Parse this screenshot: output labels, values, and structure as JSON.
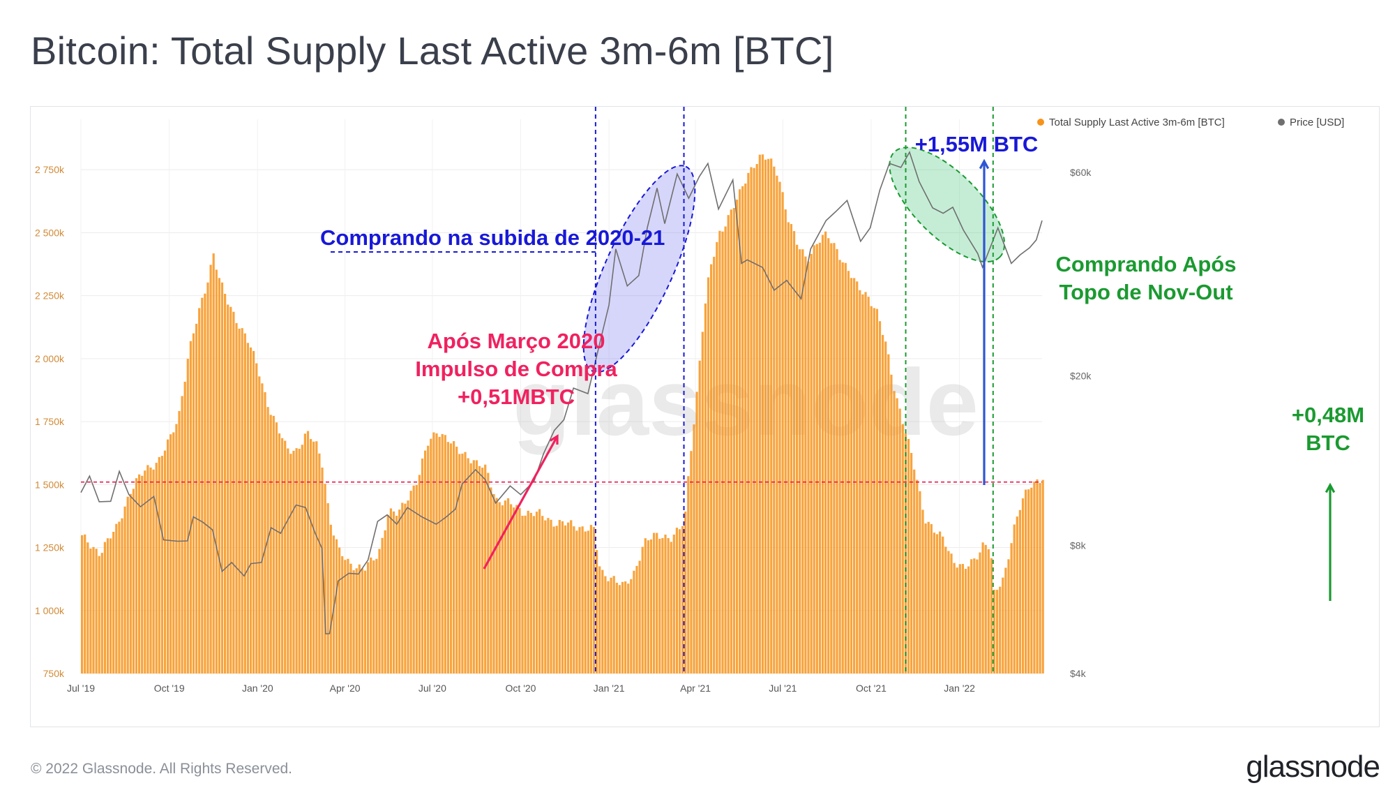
{
  "title": "Bitcoin: Total Supply Last Active 3m-6m [BTC]",
  "footer": {
    "copyright": "© 2022 Glassnode. All Rights Reserved.",
    "logo": "glassnode"
  },
  "watermark": "glassnode",
  "chart_data": {
    "type": "bar",
    "title": "Bitcoin: Total Supply Last Active 3m-6m [BTC]",
    "legend_position": "top-right",
    "grid": true,
    "x_range": [
      "2019-07-01",
      "2022-03-28"
    ],
    "x_ticks": [
      {
        "date": "2019-07-01",
        "label": "Jul '19"
      },
      {
        "date": "2019-10-01",
        "label": "Oct '19"
      },
      {
        "date": "2020-01-01",
        "label": "Jan '20"
      },
      {
        "date": "2020-04-01",
        "label": "Apr '20"
      },
      {
        "date": "2020-07-01",
        "label": "Jul '20"
      },
      {
        "date": "2020-10-01",
        "label": "Oct '20"
      },
      {
        "date": "2021-01-01",
        "label": "Jan '21"
      },
      {
        "date": "2021-04-01",
        "label": "Apr '21"
      },
      {
        "date": "2021-07-01",
        "label": "Jul '21"
      },
      {
        "date": "2021-10-01",
        "label": "Oct '21"
      },
      {
        "date": "2022-01-01",
        "label": "Jan '22"
      }
    ],
    "y_left": {
      "unit": "BTC",
      "range": [
        750000,
        2950000
      ],
      "ticks": [
        {
          "value": 750000,
          "label": "750k"
        },
        {
          "value": 1000000,
          "label": "1 000k"
        },
        {
          "value": 1250000,
          "label": "1 250k"
        },
        {
          "value": 1500000,
          "label": "1 500k"
        },
        {
          "value": 1750000,
          "label": "1 750k"
        },
        {
          "value": 2000000,
          "label": "2 000k"
        },
        {
          "value": 2250000,
          "label": "2 250k"
        },
        {
          "value": 2500000,
          "label": "2 500k"
        },
        {
          "value": 2750000,
          "label": "2 750k"
        }
      ]
    },
    "y_right": {
      "unit": "USD",
      "scale": "log",
      "range": [
        4000,
        80000
      ],
      "ticks": [
        {
          "value": 4000,
          "label": "$4k"
        },
        {
          "value": 8000,
          "label": "$8k"
        },
        {
          "value": 20000,
          "label": "$20k"
        },
        {
          "value": 60000,
          "label": "$60k"
        }
      ]
    },
    "series": [
      {
        "name": "Total Supply Last Active 3m-6m [BTC]",
        "color": "#f7931a",
        "axis": "left",
        "kind": "bar",
        "points": [
          [
            "2019-07-01",
            1290000
          ],
          [
            "2019-07-20",
            1230000
          ],
          [
            "2019-08-05",
            1320000
          ],
          [
            "2019-08-20",
            1470000
          ],
          [
            "2019-09-05",
            1560000
          ],
          [
            "2019-09-20",
            1600000
          ],
          [
            "2019-10-01",
            1680000
          ],
          [
            "2019-10-10",
            1780000
          ],
          [
            "2019-10-20",
            2020000
          ],
          [
            "2019-10-30",
            2170000
          ],
          [
            "2019-11-08",
            2300000
          ],
          [
            "2019-11-15",
            2420000
          ],
          [
            "2019-11-22",
            2300000
          ],
          [
            "2019-12-01",
            2210000
          ],
          [
            "2019-12-10",
            2150000
          ],
          [
            "2019-12-20",
            2080000
          ],
          [
            "2020-01-01",
            1950000
          ],
          [
            "2020-01-10",
            1830000
          ],
          [
            "2020-01-20",
            1730000
          ],
          [
            "2020-01-30",
            1640000
          ],
          [
            "2020-02-10",
            1640000
          ],
          [
            "2020-02-20",
            1700000
          ],
          [
            "2020-03-01",
            1660000
          ],
          [
            "2020-03-08",
            1580000
          ],
          [
            "2020-03-15",
            1360000
          ],
          [
            "2020-03-25",
            1230000
          ],
          [
            "2020-04-05",
            1190000
          ],
          [
            "2020-04-20",
            1160000
          ],
          [
            "2020-05-05",
            1230000
          ],
          [
            "2020-05-15",
            1390000
          ],
          [
            "2020-05-25",
            1380000
          ],
          [
            "2020-06-05",
            1460000
          ],
          [
            "2020-06-15",
            1520000
          ],
          [
            "2020-06-25",
            1660000
          ],
          [
            "2020-07-05",
            1720000
          ],
          [
            "2020-07-15",
            1680000
          ],
          [
            "2020-07-25",
            1640000
          ],
          [
            "2020-08-05",
            1620000
          ],
          [
            "2020-08-15",
            1580000
          ],
          [
            "2020-08-25",
            1560000
          ],
          [
            "2020-09-05",
            1440000
          ],
          [
            "2020-09-20",
            1420000
          ],
          [
            "2020-10-05",
            1390000
          ],
          [
            "2020-10-20",
            1380000
          ],
          [
            "2020-11-05",
            1350000
          ],
          [
            "2020-11-20",
            1340000
          ],
          [
            "2020-12-05",
            1330000
          ],
          [
            "2020-12-15",
            1320000
          ],
          [
            "2020-12-22",
            1150000
          ],
          [
            "2021-01-05",
            1130000
          ],
          [
            "2021-01-15",
            1090000
          ],
          [
            "2021-01-25",
            1140000
          ],
          [
            "2021-02-05",
            1270000
          ],
          [
            "2021-02-15",
            1290000
          ],
          [
            "2021-02-25",
            1300000
          ],
          [
            "2021-03-05",
            1290000
          ],
          [
            "2021-03-15",
            1320000
          ],
          [
            "2021-03-20",
            1360000
          ],
          [
            "2021-03-25",
            1600000
          ],
          [
            "2021-04-01",
            1850000
          ],
          [
            "2021-04-08",
            2150000
          ],
          [
            "2021-04-15",
            2350000
          ],
          [
            "2021-04-25",
            2500000
          ],
          [
            "2021-05-05",
            2570000
          ],
          [
            "2021-05-15",
            2640000
          ],
          [
            "2021-05-25",
            2740000
          ],
          [
            "2021-06-05",
            2800000
          ],
          [
            "2021-06-15",
            2790000
          ],
          [
            "2021-06-25",
            2740000
          ],
          [
            "2021-07-05",
            2560000
          ],
          [
            "2021-07-15",
            2450000
          ],
          [
            "2021-07-25",
            2400000
          ],
          [
            "2021-08-05",
            2460000
          ],
          [
            "2021-08-15",
            2490000
          ],
          [
            "2021-08-25",
            2440000
          ],
          [
            "2021-09-05",
            2350000
          ],
          [
            "2021-09-15",
            2290000
          ],
          [
            "2021-09-25",
            2260000
          ],
          [
            "2021-10-05",
            2190000
          ],
          [
            "2021-10-15",
            2060000
          ],
          [
            "2021-10-25",
            1870000
          ],
          [
            "2021-11-05",
            1700000
          ],
          [
            "2021-11-15",
            1550000
          ],
          [
            "2021-11-25",
            1370000
          ],
          [
            "2021-12-05",
            1310000
          ],
          [
            "2021-12-15",
            1280000
          ],
          [
            "2021-12-25",
            1200000
          ],
          [
            "2022-01-05",
            1160000
          ],
          [
            "2022-01-15",
            1200000
          ],
          [
            "2022-01-25",
            1270000
          ],
          [
            "2022-02-01",
            1250000
          ],
          [
            "2022-02-05",
            1060000
          ],
          [
            "2022-02-15",
            1130000
          ],
          [
            "2022-02-25",
            1320000
          ],
          [
            "2022-03-05",
            1420000
          ],
          [
            "2022-03-15",
            1500000
          ],
          [
            "2022-03-22",
            1520000
          ],
          [
            "2022-03-28",
            1530000
          ]
        ]
      },
      {
        "name": "Price [USD]",
        "color": "#6f6f6f",
        "axis": "right",
        "kind": "line",
        "points": [
          [
            "2019-07-01",
            10800
          ],
          [
            "2019-07-10",
            11500
          ],
          [
            "2019-07-20",
            10200
          ],
          [
            "2019-08-01",
            10300
          ],
          [
            "2019-08-10",
            11800
          ],
          [
            "2019-08-20",
            10600
          ],
          [
            "2019-09-01",
            10000
          ],
          [
            "2019-09-15",
            10300
          ],
          [
            "2019-09-25",
            8300
          ],
          [
            "2019-10-10",
            8300
          ],
          [
            "2019-10-20",
            8100
          ],
          [
            "2019-10-26",
            9400
          ],
          [
            "2019-11-05",
            9200
          ],
          [
            "2019-11-15",
            8600
          ],
          [
            "2019-11-25",
            7000
          ],
          [
            "2019-12-05",
            7400
          ],
          [
            "2019-12-18",
            6700
          ],
          [
            "2019-12-25",
            7300
          ],
          [
            "2020-01-05",
            7400
          ],
          [
            "2020-01-15",
            8700
          ],
          [
            "2020-01-25",
            8600
          ],
          [
            "2020-02-10",
            10100
          ],
          [
            "2020-02-20",
            9700
          ],
          [
            "2020-03-01",
            8600
          ],
          [
            "2020-03-08",
            8000
          ],
          [
            "2020-03-12",
            4900
          ],
          [
            "2020-03-16",
            5000
          ],
          [
            "2020-03-25",
            6700
          ],
          [
            "2020-04-05",
            6800
          ],
          [
            "2020-04-15",
            6900
          ],
          [
            "2020-04-25",
            7500
          ],
          [
            "2020-05-05",
            9000
          ],
          [
            "2020-05-15",
            9500
          ],
          [
            "2020-05-25",
            9100
          ],
          [
            "2020-06-05",
            9700
          ],
          [
            "2020-06-20",
            9400
          ],
          [
            "2020-07-05",
            9100
          ],
          [
            "2020-07-15",
            9200
          ],
          [
            "2020-07-25",
            9800
          ],
          [
            "2020-08-01",
            11300
          ],
          [
            "2020-08-15",
            11900
          ],
          [
            "2020-08-25",
            11500
          ],
          [
            "2020-09-05",
            10200
          ],
          [
            "2020-09-20",
            10900
          ],
          [
            "2020-10-01",
            10600
          ],
          [
            "2020-10-15",
            11500
          ],
          [
            "2020-10-25",
            13000
          ],
          [
            "2020-11-05",
            15000
          ],
          [
            "2020-11-15",
            16000
          ],
          [
            "2020-11-25",
            18500
          ],
          [
            "2020-12-10",
            18300
          ],
          [
            "2020-12-20",
            23000
          ],
          [
            "2021-01-01",
            29000
          ],
          [
            "2021-01-08",
            40000
          ],
          [
            "2021-01-20",
            33000
          ],
          [
            "2021-02-01",
            34000
          ],
          [
            "2021-02-10",
            45000
          ],
          [
            "2021-02-20",
            56000
          ],
          [
            "2021-02-28",
            45000
          ],
          [
            "2021-03-13",
            60000
          ],
          [
            "2021-03-25",
            53000
          ],
          [
            "2021-04-05",
            58000
          ],
          [
            "2021-04-14",
            63500
          ],
          [
            "2021-04-25",
            50000
          ],
          [
            "2021-05-10",
            57000
          ],
          [
            "2021-05-19",
            37000
          ],
          [
            "2021-05-25",
            38000
          ],
          [
            "2021-06-10",
            35500
          ],
          [
            "2021-06-22",
            32000
          ],
          [
            "2021-07-05",
            34000
          ],
          [
            "2021-07-20",
            30000
          ],
          [
            "2021-07-30",
            40000
          ],
          [
            "2021-08-15",
            47000
          ],
          [
            "2021-08-25",
            48000
          ],
          [
            "2021-09-06",
            52000
          ],
          [
            "2021-09-20",
            42000
          ],
          [
            "2021-09-30",
            44000
          ],
          [
            "2021-10-10",
            55000
          ],
          [
            "2021-10-20",
            64000
          ],
          [
            "2021-11-01",
            61000
          ],
          [
            "2021-11-10",
            67500
          ],
          [
            "2021-11-20",
            58000
          ],
          [
            "2021-12-04",
            49000
          ],
          [
            "2021-12-15",
            48500
          ],
          [
            "2021-12-25",
            50500
          ],
          [
            "2022-01-05",
            43500
          ],
          [
            "2022-01-20",
            39000
          ],
          [
            "2022-01-25",
            36500
          ],
          [
            "2022-02-10",
            44000
          ],
          [
            "2022-02-24",
            37000
          ],
          [
            "2022-03-05",
            39000
          ],
          [
            "2022-03-15",
            39500
          ],
          [
            "2022-03-22",
            42000
          ],
          [
            "2022-03-28",
            47000
          ]
        ]
      }
    ],
    "annotations": [
      {
        "id": "red-text",
        "color": "#f0215f",
        "lines": [
          "Após Março 2020",
          "Impulso de Compra",
          "+0,51MBTC"
        ]
      },
      {
        "id": "blue-text",
        "color": "#1818d8",
        "lines": [
          "Comprando na subida de 2020-21"
        ]
      },
      {
        "id": "blue-top",
        "color": "#1818d8",
        "lines": [
          "+1,55M BTC"
        ]
      },
      {
        "id": "green-text",
        "color": "#1a9a30",
        "lines": [
          "Comprando Após",
          "Topo de Nov-Out"
        ]
      },
      {
        "id": "green-right",
        "color": "#1a9a30",
        "lines": [
          "+0,48M",
          "BTC"
        ]
      }
    ],
    "reference_line_value": 1510000,
    "vlines_blue": [
      "2020-12-18",
      "2021-03-20"
    ],
    "vlines_green": [
      "2021-11-06",
      "2022-02-05"
    ]
  }
}
